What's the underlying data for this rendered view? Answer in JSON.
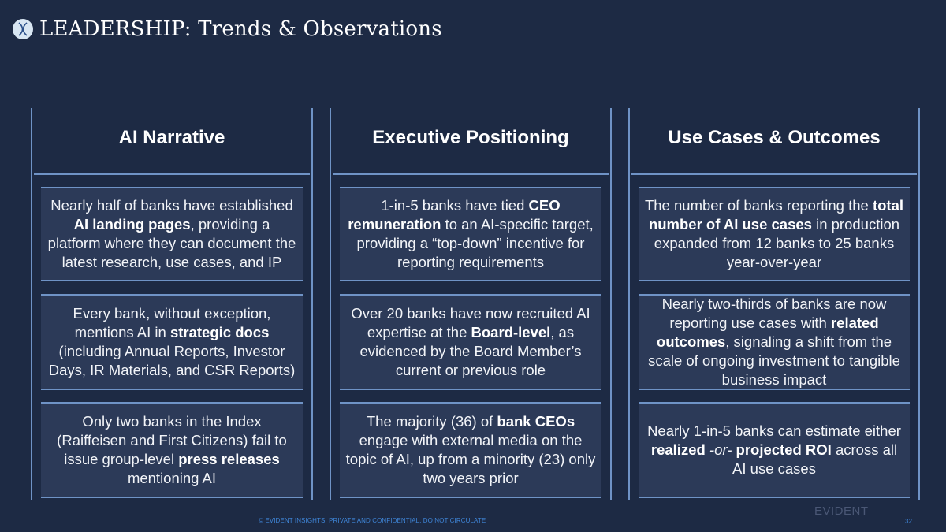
{
  "header": {
    "title": "LEADERSHIP: Trends & Observations"
  },
  "columns": [
    {
      "heading": "AI Narrative",
      "cards": [
        [
          {
            "t": "Nearly half of banks have established "
          },
          {
            "t": "AI landing pages",
            "b": true
          },
          {
            "t": ", providing a platform where they can document the latest research, use cases, and IP"
          }
        ],
        [
          {
            "t": "Every bank, without exception, mentions AI in "
          },
          {
            "t": "strategic docs",
            "b": true
          },
          {
            "t": " (including Annual Reports, Investor Days, IR Materials, and CSR Reports)"
          }
        ],
        [
          {
            "t": "Only two banks in the Index (Raiffeisen and First Citizens) fail to issue group-level "
          },
          {
            "t": "press releases",
            "b": true
          },
          {
            "t": " mentioning AI"
          }
        ]
      ]
    },
    {
      "heading": "Executive Positioning",
      "cards": [
        [
          {
            "t": "1-in-5 banks have tied "
          },
          {
            "t": "CEO remuneration",
            "b": true
          },
          {
            "t": " to an AI-specific target, providing a “top-down” incentive for reporting requirements"
          }
        ],
        [
          {
            "t": "Over 20 banks have now recruited AI expertise at the "
          },
          {
            "t": "Board-level",
            "b": true
          },
          {
            "t": ", as evidenced by the Board Member’s current or previous role"
          }
        ],
        [
          {
            "t": "The majority (36) of "
          },
          {
            "t": "bank CEOs",
            "b": true
          },
          {
            "t": " engage with external media on the topic of AI, up from a minority (23) only two years prior"
          }
        ]
      ]
    },
    {
      "heading": "Use Cases & Outcomes",
      "cards": [
        [
          {
            "t": "The number of banks reporting the "
          },
          {
            "t": "total number of AI use cases",
            "b": true
          },
          {
            "t": " in production expanded from 12 banks to 25 banks year-over-year"
          }
        ],
        [
          {
            "t": "Nearly two-thirds of banks are now reporting use cases with "
          },
          {
            "t": "related outcomes",
            "b": true
          },
          {
            "t": ", signaling a shift from the scale of ongoing investment to tangible business impact"
          }
        ],
        [
          {
            "t": "Nearly 1-in-5 banks can estimate either "
          },
          {
            "t": "realized",
            "b": true
          },
          {
            "t": " -or- ",
            "i": true
          },
          {
            "t": "projected ROI",
            "b": true
          },
          {
            "t": " across all AI use cases"
          }
        ]
      ]
    }
  ],
  "footer": {
    "note": "© EVIDENT INSIGHTS. PRIVATE AND CONFIDENTIAL. DO NOT CIRCULATE",
    "brand": "EVIDENT",
    "page": "32"
  },
  "colors": {
    "background": "#1d2a44",
    "card": "#2c3a58",
    "accent_line": "#6f93c6",
    "footer": "#3f86d9"
  },
  "icons": {
    "logo": "evident-logo-icon"
  }
}
